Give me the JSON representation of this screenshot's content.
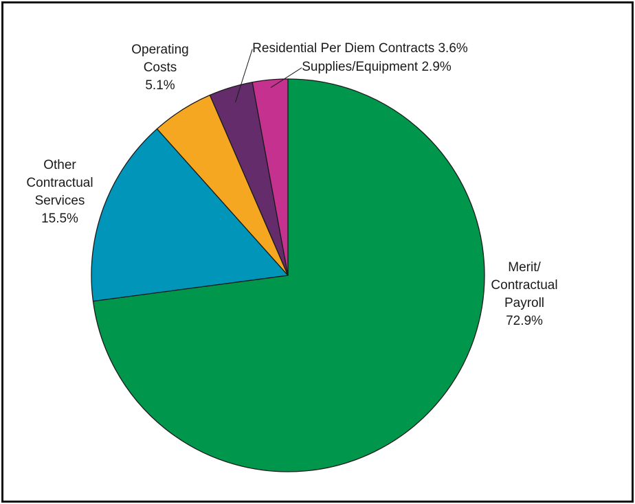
{
  "chart_data": {
    "type": "pie",
    "start_angle_deg": 0,
    "direction": "clockwise",
    "slices": [
      {
        "label": "Merit/ Contractual Payroll",
        "label_lines": [
          "Merit/",
          "Contractual",
          "Payroll",
          "72.9%"
        ],
        "value": 72.9,
        "value_text": "72.9%",
        "color": "#00964b"
      },
      {
        "label": "Other Contractual Services",
        "label_lines": [
          "Other",
          "Contractual",
          "Services",
          "15.5%"
        ],
        "value": 15.5,
        "value_text": "15.5%",
        "color": "#0095b9"
      },
      {
        "label": "Operating Costs",
        "label_lines": [
          "Operating",
          "Costs",
          "5.1%"
        ],
        "value": 5.1,
        "value_text": "5.1%",
        "color": "#f5a722"
      },
      {
        "label": "Residential Per Diem Contracts",
        "label_lines": [
          "Residential Per Diem Contracts 3.6%"
        ],
        "value": 3.6,
        "value_text": "3.6%",
        "color": "#642c6b"
      },
      {
        "label": "Supplies/Equipment",
        "label_lines": [
          "Supplies/Equipment 2.9%"
        ],
        "value": 2.9,
        "value_text": "2.9%",
        "color": "#c4318f"
      }
    ]
  }
}
